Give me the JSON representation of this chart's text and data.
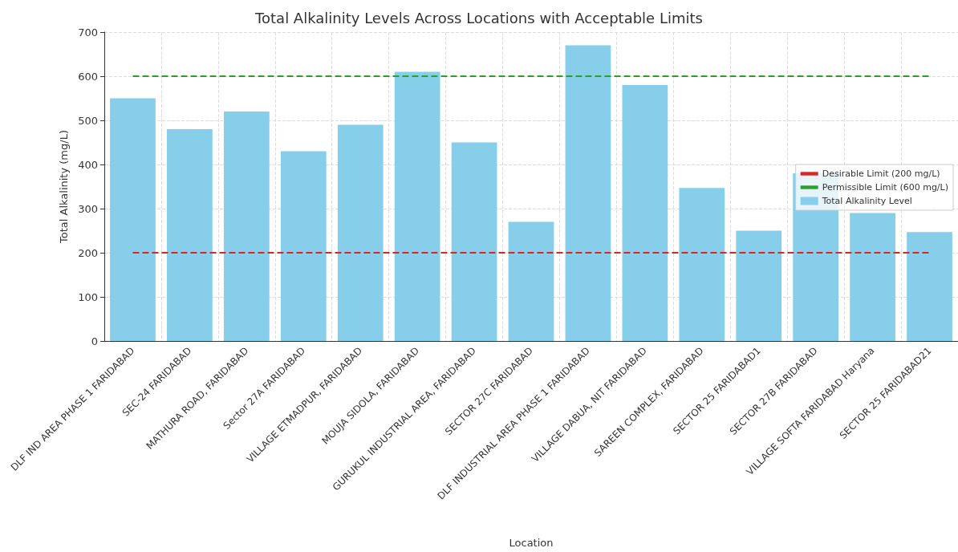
{
  "chart_data": {
    "type": "bar",
    "title": "Total Alkalinity Levels Across Locations with Acceptable Limits",
    "xlabel": "Location",
    "ylabel": "Total Alkalinity (mg/L)",
    "categories": [
      "DLF IND AREA PHASE 1 FARIDABAD",
      "SEC-24 FARIDABAD",
      "MATHURA ROAD, FARIDABAD",
      "Sector 27A FARIDABAD",
      "VILLAGE ETMADPUR, FARIDABAD",
      "MOUJA SIDOLA, FARIDABAD",
      "GURUKUL INDUSTRIAL AREA, FARIDABAD",
      "SECTOR 27C FARIDABAD",
      "DLF INDUSTRIAL AREA PHASE 1 FARIDABAD",
      "VILLAGE DABUA, NIT FARIDABAD",
      "SAREEN COMPLEX, FARIDABAD",
      "SECTOR 25 FARIDABAD1",
      "SECTOR 27B FARIDABAD",
      "VILLAGE SOFTA FARIDABAD Haryana",
      "SECTOR 25 FARIDABAD21"
    ],
    "series": [
      {
        "name": "Total Alkalinity Level",
        "color": "#87ceeb",
        "values": [
          550,
          480,
          520,
          430,
          490,
          610,
          450,
          270,
          670,
          580,
          347,
          250,
          380,
          290,
          247
        ]
      }
    ],
    "ylim": [
      0,
      700
    ],
    "yticks": [
      0,
      100,
      200,
      300,
      400,
      500,
      600,
      700
    ],
    "ref_lines": [
      {
        "axis": "y",
        "value": 200,
        "label": "Desirable Limit (200 mg/L)",
        "color": "#d62728",
        "line_style": "dashed"
      },
      {
        "axis": "y",
        "value": 600,
        "label": "Permissible Limit (600 mg/L)",
        "color": "#2ca02c",
        "line_style": "dashed"
      }
    ],
    "grid": true,
    "legend": "right"
  }
}
